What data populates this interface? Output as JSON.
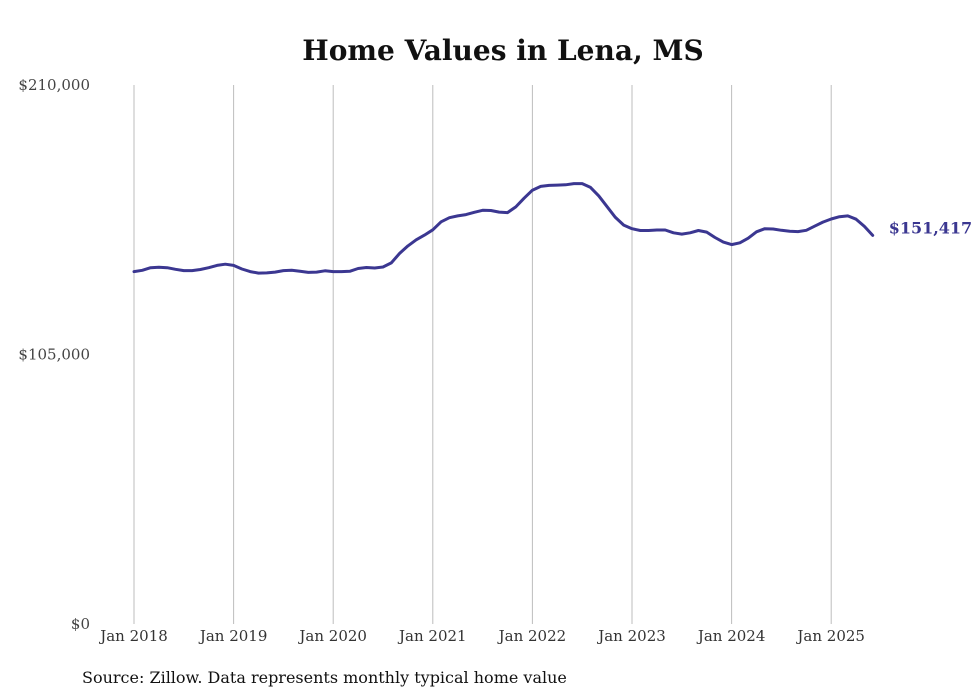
{
  "chart_data": {
    "type": "line",
    "title": "Home Values in Lena, MS",
    "xlabel": "",
    "ylabel": "",
    "ylim": [
      0,
      210000
    ],
    "y_ticks": [
      "$0",
      "$105,000",
      "$210,000"
    ],
    "y_tick_values": [
      0,
      105000,
      210000
    ],
    "x_tick_labels": [
      "Jan 2018",
      "Jan 2019",
      "Jan 2020",
      "Jan 2021",
      "Jan 2022",
      "Jan 2023",
      "Jan 2024",
      "Jan 2025"
    ],
    "x_tick_dates": [
      "2018-01",
      "2019-01",
      "2020-01",
      "2021-01",
      "2022-01",
      "2023-01",
      "2024-01",
      "2025-01"
    ],
    "grid": "vertical",
    "line_color": "#3b3791",
    "end_label": "$151,417",
    "series": [
      {
        "x": [
          "2018-01",
          "2018-02",
          "2018-03",
          "2018-04",
          "2018-05",
          "2018-06",
          "2018-07",
          "2018-08",
          "2018-09",
          "2018-10",
          "2018-11",
          "2018-12",
          "2019-01",
          "2019-02",
          "2019-03",
          "2019-04",
          "2019-05",
          "2019-06",
          "2019-07",
          "2019-08",
          "2019-09",
          "2019-10",
          "2019-11",
          "2019-12",
          "2020-01",
          "2020-02",
          "2020-03",
          "2020-04",
          "2020-05",
          "2020-06",
          "2020-07",
          "2020-08",
          "2020-09",
          "2020-10",
          "2020-11",
          "2020-12",
          "2021-01",
          "2021-02",
          "2021-03",
          "2021-04",
          "2021-05",
          "2021-06",
          "2021-07",
          "2021-08",
          "2021-09",
          "2021-10",
          "2021-11",
          "2021-12",
          "2022-01",
          "2022-02",
          "2022-03",
          "2022-04",
          "2022-05",
          "2022-06",
          "2022-07",
          "2022-08",
          "2022-09",
          "2022-10",
          "2022-11",
          "2022-12",
          "2023-01",
          "2023-02",
          "2023-03",
          "2023-04",
          "2023-05",
          "2023-06",
          "2023-07",
          "2023-08",
          "2023-09",
          "2023-10",
          "2023-11",
          "2023-12",
          "2024-01",
          "2024-02",
          "2024-03",
          "2024-04",
          "2024-05",
          "2024-06",
          "2024-07",
          "2024-08",
          "2024-09",
          "2024-10",
          "2024-11",
          "2024-12",
          "2025-01",
          "2025-02",
          "2025-03",
          "2025-04",
          "2025-05",
          "2025-06"
        ],
        "values": [
          137300,
          137800,
          138800,
          139000,
          138800,
          138200,
          137700,
          137700,
          138100,
          138800,
          139700,
          140200,
          139700,
          138300,
          137300,
          136700,
          136800,
          137100,
          137700,
          137800,
          137400,
          137000,
          137100,
          137600,
          137300,
          137300,
          137400,
          138500,
          138900,
          138700,
          139100,
          140700,
          144400,
          147300,
          149700,
          151500,
          153600,
          156700,
          158300,
          159000,
          159500,
          160400,
          161200,
          161100,
          160500,
          160300,
          162500,
          165900,
          169000,
          170500,
          170900,
          171000,
          171100,
          171600,
          171600,
          170100,
          166800,
          162600,
          158400,
          155400,
          154000,
          153300,
          153300,
          153500,
          153500,
          152400,
          151900,
          152400,
          153300,
          152700,
          150600,
          148800,
          147800,
          148500,
          150300,
          152800,
          154000,
          153900,
          153400,
          153000,
          152900,
          153400,
          155000,
          156600,
          157800,
          158700,
          159000,
          157700,
          154900,
          151417
        ]
      }
    ]
  },
  "source": "Source: Zillow. Data represents monthly typical home value"
}
